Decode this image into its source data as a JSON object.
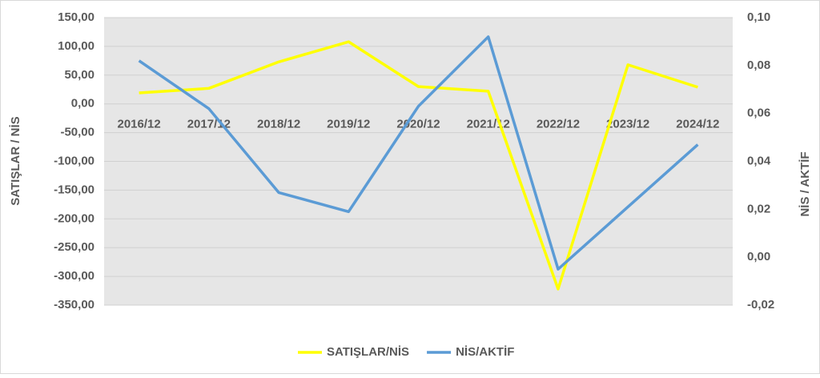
{
  "chart_data": {
    "type": "line",
    "categories": [
      "2016/12",
      "2017/12",
      "2018/12",
      "2019/12",
      "2020/12",
      "2021/12",
      "2022/12",
      "2023/12",
      "2024/12"
    ],
    "series": [
      {
        "name": "SATIŞLAR/NİS",
        "color": "#ffff00",
        "values": [
          19,
          27,
          73,
          108,
          30,
          22,
          -322,
          68,
          29
        ]
      },
      {
        "name": "NİS/AKTİF",
        "color": "#5b9bd5",
        "axis": "y2",
        "values": [
          0.082,
          0.062,
          0.027,
          0.019,
          0.063,
          0.092,
          -0.005,
          0.021,
          0.047
        ]
      }
    ],
    "ylabel": "SATIŞLAR / NİS",
    "y2label": "NİS / AKTİF",
    "ylim": [
      -350,
      150
    ],
    "yticks": [
      {
        "value": -350,
        "label": "-350,00"
      },
      {
        "value": -300,
        "label": "-300,00"
      },
      {
        "value": -250,
        "label": "-250,00"
      },
      {
        "value": -200,
        "label": "-200,00"
      },
      {
        "value": -150,
        "label": "-150,00"
      },
      {
        "value": -100,
        "label": "-100,00"
      },
      {
        "value": -50,
        "label": "-50,00"
      },
      {
        "value": 0,
        "label": "0,00"
      },
      {
        "value": 50,
        "label": "50,00"
      },
      {
        "value": 100,
        "label": "100,00"
      },
      {
        "value": 150,
        "label": "150,00"
      }
    ],
    "y2lim": [
      -0.02,
      0.1
    ],
    "y2ticks": [
      {
        "value": -0.02,
        "label": "-0,02"
      },
      {
        "value": 0,
        "label": "0,00"
      },
      {
        "value": 0.02,
        "label": "0,02"
      },
      {
        "value": 0.04,
        "label": "0,04"
      },
      {
        "value": 0.06,
        "label": "0,06"
      },
      {
        "value": 0.08,
        "label": "0,08"
      },
      {
        "value": 0.1,
        "label": "0,10"
      }
    ],
    "grid": true,
    "legend": "bottom"
  }
}
